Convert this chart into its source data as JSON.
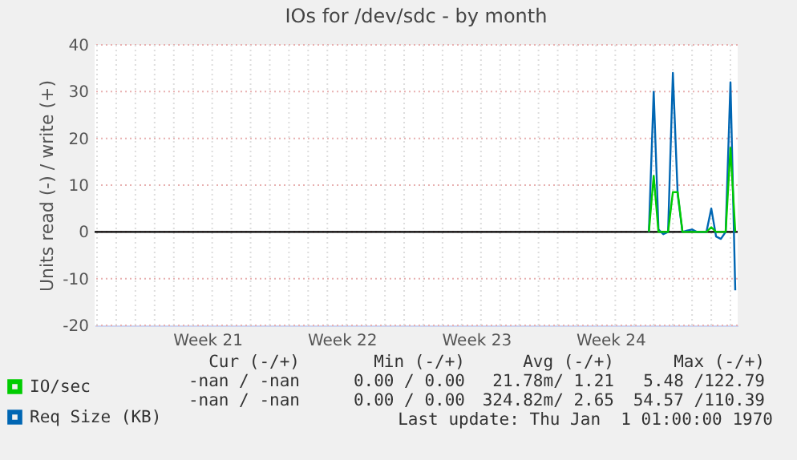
{
  "chart_data": {
    "type": "line",
    "title": "IOs for /dev/sdc - by month",
    "ylabel": "Units read (-) / write (+)",
    "categories": [
      null,
      null,
      null,
      null,
      null,
      null,
      null,
      null,
      null,
      null,
      null,
      null,
      null,
      null,
      null,
      null,
      null,
      null,
      null,
      null,
      null,
      null,
      null,
      "Week 21",
      null,
      null,
      null,
      null,
      null,
      null,
      null,
      null,
      null,
      null,
      null,
      null,
      null,
      null,
      null,
      null,
      null,
      null,
      null,
      null,
      null,
      null,
      null,
      null,
      null,
      null,
      null,
      "Week 22",
      null,
      null,
      null,
      null,
      null,
      null,
      null,
      null,
      null,
      null,
      null,
      null,
      null,
      null,
      null,
      null,
      null,
      null,
      null,
      null,
      null,
      null,
      null,
      null,
      null,
      null,
      null,
      "Week 23",
      null,
      null,
      null,
      null,
      null,
      null,
      null,
      null,
      null,
      null,
      null,
      null,
      null,
      null,
      null,
      null,
      null,
      null,
      null,
      null,
      null,
      null,
      null,
      null,
      null,
      null,
      null,
      "Week 24",
      null,
      null,
      null,
      null,
      null,
      null,
      null,
      null,
      null,
      null,
      null,
      null,
      null,
      null,
      null,
      null,
      null,
      null,
      null,
      null,
      null,
      null,
      null,
      null,
      null,
      null
    ],
    "ylim": [
      -20,
      40
    ],
    "yticks": [
      -20,
      -10,
      0,
      10,
      20,
      30,
      40
    ],
    "grid": true,
    "legend": "bottom left",
    "ref_lines": [
      {
        "axis": "y",
        "value": 0,
        "color": "#000000"
      }
    ],
    "series": [
      {
        "name": "IO/sec",
        "color": "#00cc00",
        "values": [
          null,
          null,
          null,
          null,
          null,
          null,
          null,
          null,
          null,
          null,
          null,
          null,
          null,
          null,
          null,
          null,
          null,
          null,
          null,
          null,
          null,
          null,
          null,
          null,
          null,
          null,
          null,
          null,
          null,
          null,
          null,
          null,
          null,
          null,
          null,
          null,
          null,
          null,
          null,
          null,
          null,
          null,
          null,
          null,
          null,
          null,
          null,
          null,
          null,
          null,
          null,
          null,
          null,
          null,
          null,
          null,
          null,
          null,
          null,
          null,
          null,
          null,
          null,
          null,
          null,
          null,
          null,
          null,
          null,
          null,
          null,
          null,
          null,
          null,
          null,
          null,
          null,
          null,
          null,
          null,
          null,
          null,
          null,
          null,
          null,
          null,
          null,
          null,
          null,
          null,
          null,
          null,
          null,
          null,
          null,
          null,
          null,
          null,
          null,
          null,
          null,
          null,
          null,
          null,
          null,
          null,
          null,
          null,
          null,
          null,
          null,
          null,
          null,
          null,
          null,
          0,
          12,
          0,
          0,
          0,
          8.5,
          8.5,
          0,
          0,
          0,
          0,
          0,
          0,
          1,
          0,
          0,
          0,
          18,
          0
        ]
      },
      {
        "name": "Req Size (KB)",
        "color": "#0066b3",
        "values": [
          null,
          null,
          null,
          null,
          null,
          null,
          null,
          null,
          null,
          null,
          null,
          null,
          null,
          null,
          null,
          null,
          null,
          null,
          null,
          null,
          null,
          null,
          null,
          null,
          null,
          null,
          null,
          null,
          null,
          null,
          null,
          null,
          null,
          null,
          null,
          null,
          null,
          null,
          null,
          null,
          null,
          null,
          null,
          null,
          null,
          null,
          null,
          null,
          null,
          null,
          null,
          null,
          null,
          null,
          null,
          null,
          null,
          null,
          null,
          null,
          null,
          null,
          null,
          null,
          null,
          null,
          null,
          null,
          null,
          null,
          null,
          null,
          null,
          null,
          null,
          null,
          null,
          null,
          null,
          null,
          null,
          null,
          null,
          null,
          null,
          null,
          null,
          null,
          null,
          null,
          null,
          null,
          null,
          null,
          null,
          null,
          null,
          null,
          null,
          null,
          null,
          null,
          null,
          null,
          null,
          null,
          null,
          null,
          null,
          null,
          null,
          null,
          null,
          null,
          null,
          0,
          30,
          0.5,
          -0.5,
          0,
          34,
          8,
          0,
          0.3,
          0.5,
          0,
          0,
          0,
          5,
          -1,
          -1.5,
          0,
          32,
          -12.5
        ]
      }
    ],
    "annotations": [
      "Cur (-/+)",
      "Min (-/+)",
      "Avg (-/+)",
      "Max (-/+)",
      "-nan / -nan",
      "0.00 / 0.00",
      "21.78m/ 1.21",
      "5.48 /122.79",
      "-nan / -nan",
      "0.00 / 0.00",
      "324.82m/ 2.65",
      "54.57 /110.39",
      "Last update: Thu Jan  1 01:00:00 1970"
    ]
  }
}
